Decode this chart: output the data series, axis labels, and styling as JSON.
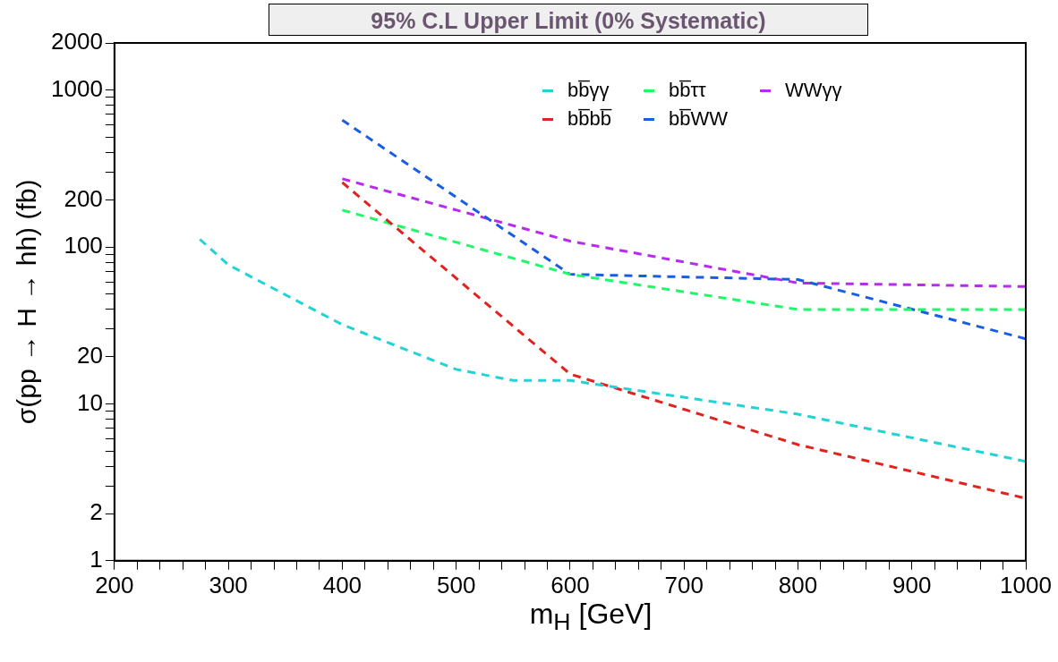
{
  "chart_data": {
    "type": "line",
    "title": "95% C.L Upper Limit (0% Systematic)",
    "xlabel": "m$_{H}$ [GeV]",
    "ylabel": "σ(pp → H → hh) (fb)",
    "log": "y",
    "xlim": [
      200,
      1000
    ],
    "ylim": [
      1,
      2000
    ],
    "xticks": [
      200,
      {
        "value": 220,
        "label": null
      },
      {
        "value": 240,
        "label": null
      },
      {
        "value": 260,
        "label": null
      },
      {
        "value": 280,
        "label": null
      },
      300,
      {
        "value": 320,
        "label": null
      },
      {
        "value": 340,
        "label": null
      },
      {
        "value": 360,
        "label": null
      },
      {
        "value": 380,
        "label": null
      },
      400,
      {
        "value": 420,
        "label": null
      },
      {
        "value": 440,
        "label": null
      },
      {
        "value": 460,
        "label": null
      },
      {
        "value": 480,
        "label": null
      },
      500,
      {
        "value": 520,
        "label": null
      },
      {
        "value": 540,
        "label": null
      },
      {
        "value": 560,
        "label": null
      },
      {
        "value": 580,
        "label": null
      },
      600,
      {
        "value": 620,
        "label": null
      },
      {
        "value": 640,
        "label": null
      },
      {
        "value": 660,
        "label": null
      },
      {
        "value": 680,
        "label": null
      },
      700,
      {
        "value": 720,
        "label": null
      },
      {
        "value": 740,
        "label": null
      },
      {
        "value": 760,
        "label": null
      },
      {
        "value": 780,
        "label": null
      },
      800,
      {
        "value": 820,
        "label": null
      },
      {
        "value": 840,
        "label": null
      },
      {
        "value": 860,
        "label": null
      },
      {
        "value": 880,
        "label": null
      },
      900,
      {
        "value": 920,
        "label": null
      },
      {
        "value": 940,
        "label": null
      },
      {
        "value": 960,
        "label": null
      },
      {
        "value": 980,
        "label": null
      },
      1000
    ],
    "yticks": [
      1,
      2,
      {
        "value": 3,
        "label": null
      },
      {
        "value": 4,
        "label": null
      },
      {
        "value": 5,
        "label": null
      },
      {
        "value": 6,
        "label": null
      },
      {
        "value": 7,
        "label": null
      },
      {
        "value": 8,
        "label": null
      },
      {
        "value": 9,
        "label": null
      },
      10,
      20,
      {
        "value": 30,
        "label": null
      },
      {
        "value": 40,
        "label": null
      },
      {
        "value": 50,
        "label": null
      },
      {
        "value": 60,
        "label": null
      },
      {
        "value": 70,
        "label": null
      },
      {
        "value": 80,
        "label": null
      },
      {
        "value": 90,
        "label": null
      },
      100,
      200,
      {
        "value": 300,
        "label": null
      },
      {
        "value": 400,
        "label": null
      },
      {
        "value": 500,
        "label": null
      },
      {
        "value": 600,
        "label": null
      },
      {
        "value": 700,
        "label": null
      },
      {
        "value": 800,
        "label": null
      },
      {
        "value": 900,
        "label": null
      },
      1000,
      2000
    ],
    "grid": false,
    "legend": "top right",
    "marker": "none",
    "line_style": "dashed",
    "series": [
      {
        "name": "bb̅γγ",
        "color": "#22d3d6",
        "x": [
          275,
          300,
          400,
          500,
          550,
          600,
          800,
          1000
        ],
        "values": [
          112,
          77,
          32,
          16.6,
          14.1,
          14.1,
          8.6,
          4.3
        ]
      },
      {
        "name": "bb̅bb̅",
        "color": "#e0231f",
        "x": [
          400,
          600,
          800,
          1000
        ],
        "values": [
          258,
          15.5,
          5.5,
          2.5
        ]
      },
      {
        "name": "bb̅ττ",
        "color": "#1ef86a",
        "x": [
          400,
          600,
          800,
          1000
        ],
        "values": [
          172,
          67,
          40,
          40
        ]
      },
      {
        "name": "bb̅WW",
        "color": "#1a5de0",
        "x": [
          400,
          600,
          800,
          1000
        ],
        "values": [
          645,
          67,
          62,
          26
        ]
      },
      {
        "name": "WWγγ",
        "color": "#b82af0",
        "x": [
          400,
          600,
          800,
          1000
        ],
        "values": [
          272,
          109,
          59,
          56
        ]
      }
    ]
  }
}
